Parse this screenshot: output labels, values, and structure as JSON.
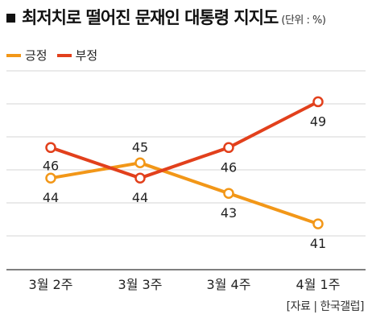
{
  "header": {
    "title": "최저치로 떨어진 문재인 대통령 지지도",
    "unit": "(단위 : %)"
  },
  "source": "[자료 | 한국갤럽]",
  "colors": {
    "positive": "#f29718",
    "negative": "#e2401c",
    "grid": "#d6d6d6",
    "axis": "#555555"
  },
  "chart_data": {
    "type": "line",
    "categories": [
      "3월 2주",
      "3월 3주",
      "3월 4주",
      "4월 1주"
    ],
    "series": [
      {
        "name": "긍정",
        "color": "#f29718",
        "values": [
          44,
          45,
          43,
          41
        ]
      },
      {
        "name": "부정",
        "color": "#e2401c",
        "values": [
          46,
          44,
          46,
          49
        ]
      }
    ],
    "ylim": [
      38,
      51
    ],
    "grid": true,
    "legend": "top-left"
  }
}
